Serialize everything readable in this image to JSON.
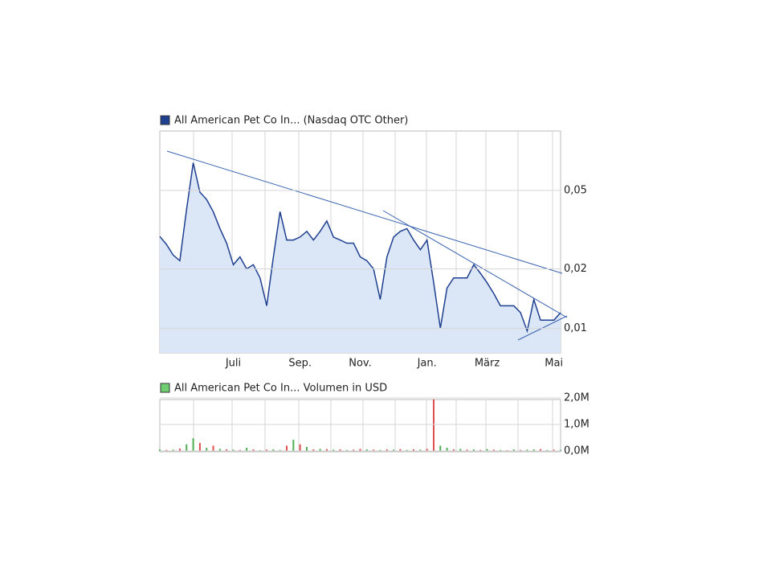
{
  "chart_data": [
    {
      "type": "line",
      "legend": "All American Pet Co In... (Nasdaq OTC Other)",
      "log_scale": true,
      "grid": true,
      "color": "#1f3f8f",
      "fill": "#dbe6f7",
      "categories": [
        null,
        null,
        null,
        null,
        null,
        null,
        null,
        null,
        null,
        null,
        null,
        "Juli",
        null,
        null,
        null,
        null,
        null,
        null,
        null,
        null,
        null,
        "Sep.",
        null,
        null,
        null,
        null,
        null,
        null,
        null,
        null,
        "Nov.",
        null,
        null,
        null,
        null,
        null,
        null,
        null,
        null,
        null,
        "Jan.",
        null,
        null,
        null,
        null,
        null,
        null,
        null,
        null,
        "März",
        null,
        null,
        null,
        null,
        null,
        null,
        null,
        null,
        null,
        "Mai",
        null
      ],
      "values": [
        0.0292,
        0.0266,
        0.0235,
        0.022,
        0.04,
        0.069,
        0.049,
        0.045,
        0.039,
        0.032,
        0.027,
        0.021,
        0.023,
        0.02,
        0.021,
        0.018,
        0.013,
        0.023,
        0.039,
        0.028,
        0.028,
        0.029,
        0.031,
        0.028,
        0.031,
        0.035,
        0.029,
        0.028,
        0.027,
        0.027,
        0.023,
        0.022,
        0.02,
        0.014,
        0.023,
        0.029,
        0.031,
        0.032,
        0.028,
        0.025,
        0.028,
        0.017,
        0.01,
        0.016,
        0.018,
        0.018,
        0.018,
        0.021,
        0.019,
        0.017,
        0.015,
        0.013,
        0.013,
        0.013,
        0.012,
        0.0097,
        0.014,
        0.011,
        0.011,
        0.011,
        0.012
      ],
      "ylim": [
        0.0075,
        0.1
      ],
      "yticks": [
        {
          "value": 0.01,
          "label": "0,01"
        },
        {
          "value": 0.02,
          "label": "0,02"
        },
        {
          "value": 0.05,
          "label": "0,05"
        }
      ]
    },
    {
      "type": "bar",
      "legend": "All American Pet Co In... Volumen in USD",
      "grid": true,
      "values": [
        60000,
        40000,
        50000,
        90000,
        250000,
        480000,
        300000,
        120000,
        200000,
        80000,
        60000,
        50000,
        40000,
        120000,
        60000,
        30000,
        50000,
        60000,
        40000,
        200000,
        420000,
        250000,
        150000,
        60000,
        80000,
        70000,
        50000,
        60000,
        40000,
        50000,
        80000,
        60000,
        50000,
        40000,
        60000,
        50000,
        70000,
        40000,
        60000,
        50000,
        80000,
        1950000,
        200000,
        120000,
        60000,
        80000,
        50000,
        60000,
        40000,
        70000,
        50000,
        40000,
        30000,
        60000,
        40000,
        50000,
        60000,
        70000,
        40000,
        50000,
        40000
      ],
      "colors": [
        "#4caf50",
        "#e05050",
        "#4caf50",
        "#e05050",
        "#4caf50",
        "#4caf50",
        "#e05050",
        "#4caf50",
        "#e05050",
        "#4caf50",
        "#e05050",
        "#4caf50",
        "#e05050",
        "#4caf50",
        "#e05050",
        "#4caf50",
        "#e05050",
        "#4caf50",
        "#4caf50",
        "#e05050",
        "#4caf50",
        "#e05050",
        "#4caf50",
        "#e05050",
        "#4caf50",
        "#e05050",
        "#4caf50",
        "#e05050",
        "#4caf50",
        "#e05050",
        "#e05050",
        "#4caf50",
        "#e05050",
        "#4caf50",
        "#e05050",
        "#4caf50",
        "#e05050",
        "#4caf50",
        "#e05050",
        "#4caf50",
        "#e05050",
        "#e05050",
        "#4caf50",
        "#4caf50",
        "#e05050",
        "#4caf50",
        "#e05050",
        "#4caf50",
        "#e05050",
        "#4caf50",
        "#e05050",
        "#4caf50",
        "#e05050",
        "#4caf50",
        "#e05050",
        "#4caf50",
        "#4caf50",
        "#e05050",
        "#4caf50",
        "#e05050",
        "#4caf50"
      ],
      "ylim": [
        0,
        2000000
      ],
      "yticks": [
        {
          "value": 0,
          "label": "0,0M"
        },
        {
          "value": 1000000,
          "label": "1,0M"
        },
        {
          "value": 2000000,
          "label": "2,0M"
        }
      ]
    }
  ]
}
